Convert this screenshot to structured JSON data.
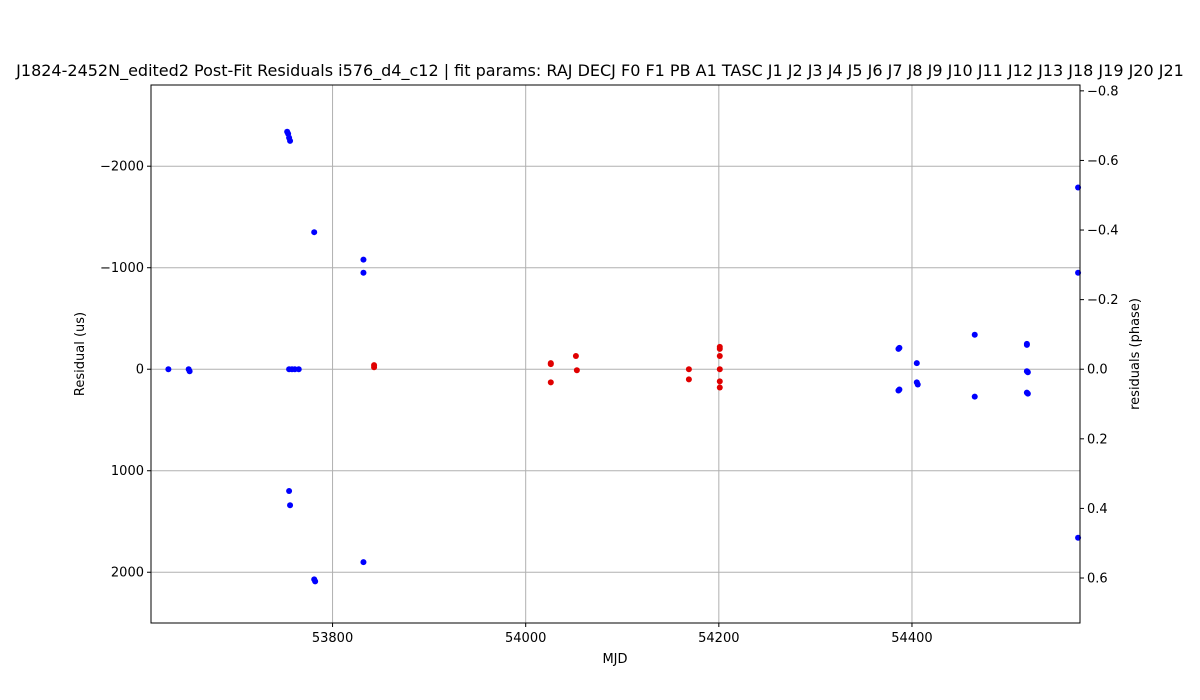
{
  "chart_data": {
    "type": "scatter",
    "title": "J1824-2452N_edited2 Post-Fit Residuals i576_d4_c12 | fit params: RAJ DECJ F0 F1 PB A1 TASC J1 J2 J3 J4 J5 J6 J7 J8 J9 J10 J11 J12 J13 J18 J19 J20 J21",
    "xlabel": "MJD",
    "ylabel": "Residual (us)",
    "y2label": "residuals (phase)",
    "xlim": [
      53612,
      54574
    ],
    "ylim": [
      2500,
      -2800
    ],
    "y2lim": [
      0.7293,
      -0.8168
    ],
    "y_inverted": true,
    "grid": true,
    "x_ticks": [
      53800,
      54000,
      54200,
      54400
    ],
    "y_ticks": [
      -2000,
      -1000,
      0,
      1000,
      2000
    ],
    "y2_ticks": [
      -0.8,
      -0.6,
      -0.4,
      -0.2,
      0.0,
      0.2,
      0.4,
      0.6
    ],
    "x_tick_labels": [
      "53800",
      "54000",
      "54200",
      "54400"
    ],
    "y_tick_labels": [
      "−2000",
      "−1000",
      "0",
      "1000",
      "2000"
    ],
    "y2_tick_labels": [
      "−0.8",
      "−0.6",
      "−0.4",
      "−0.2",
      "0.0",
      "0.2",
      "0.4",
      "0.6"
    ],
    "series": [
      {
        "color": "#0000ff",
        "points": [
          [
            53630,
            0
          ],
          [
            53651,
            0
          ],
          [
            53652,
            20
          ],
          [
            53753,
            -2340
          ],
          [
            53754,
            -2320
          ],
          [
            53755,
            -2280
          ],
          [
            53756,
            -2250
          ],
          [
            53755,
            0
          ],
          [
            53758,
            0
          ],
          [
            53761,
            0
          ],
          [
            53765,
            0
          ],
          [
            53755,
            1200
          ],
          [
            53756,
            1340
          ],
          [
            53781,
            -1350
          ],
          [
            53781,
            2070
          ],
          [
            53782,
            2090
          ],
          [
            53832,
            -1080
          ],
          [
            53832,
            -950
          ],
          [
            53832,
            1900
          ],
          [
            54386,
            -200
          ],
          [
            54387,
            -210
          ],
          [
            54386,
            210
          ],
          [
            54387,
            200
          ],
          [
            54405,
            -60
          ],
          [
            54405,
            130
          ],
          [
            54406,
            150
          ],
          [
            54465,
            -340
          ],
          [
            54465,
            270
          ],
          [
            54519,
            -240
          ],
          [
            54519,
            -250
          ],
          [
            54519,
            20
          ],
          [
            54520,
            30
          ],
          [
            54519,
            230
          ],
          [
            54520,
            240
          ],
          [
            54572,
            -1790
          ],
          [
            54572,
            -950
          ],
          [
            54572,
            1660
          ]
        ]
      },
      {
        "color": "#e00000",
        "points": [
          [
            53843,
            -40
          ],
          [
            53843,
            -20
          ],
          [
            54026,
            -60
          ],
          [
            54026,
            -50
          ],
          [
            54026,
            130
          ],
          [
            54052,
            -130
          ],
          [
            54053,
            10
          ],
          [
            54169,
            0
          ],
          [
            54169,
            100
          ],
          [
            54201,
            -220
          ],
          [
            54201,
            -200
          ],
          [
            54201,
            -130
          ],
          [
            54201,
            0
          ],
          [
            54201,
            120
          ],
          [
            54201,
            180
          ]
        ]
      }
    ]
  }
}
